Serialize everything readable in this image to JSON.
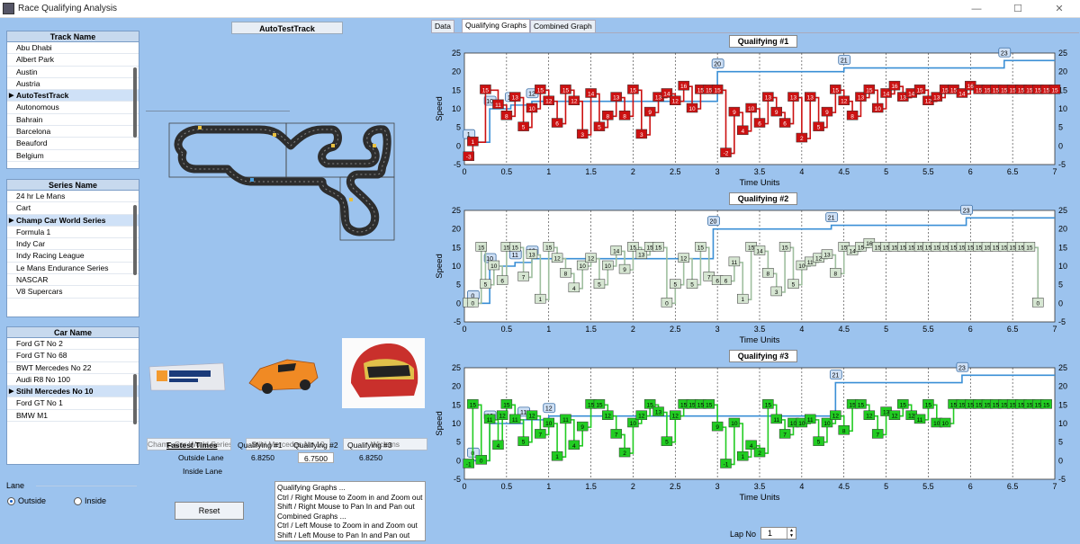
{
  "window": {
    "title": "Race Qualifying Analysis",
    "btn_min": "—",
    "btn_max": "☐",
    "btn_close": "✕"
  },
  "tracks": {
    "header": "Track Name",
    "items": [
      "Abu Dhabi",
      "Albert Park",
      "Austin",
      "Austria",
      "AutoTestTrack",
      "Autonomous",
      "Bahrain",
      "Barcelona",
      "Beauford",
      "Belgium"
    ],
    "selected": 4
  },
  "series": {
    "header": "Series Name",
    "items": [
      "24 hr Le Mans",
      "Cart",
      "Champ Car World Series",
      "Formula 1",
      "Indy Car",
      "Indy Racing League",
      "Le Mans Endurance Series",
      "NASCAR",
      "V8 Supercars"
    ],
    "selected": 2
  },
  "cars": {
    "header": "Car Name",
    "items": [
      "Ford GT No 2",
      "Ford GT No 68",
      "BWT Mercedes No 22",
      "Audi R8 No 100",
      "Stihl Mercedes No 10",
      "Ford GT No 1",
      "BMW M1"
    ],
    "selected": 4
  },
  "lane": {
    "label": "Lane",
    "outside": "Outside",
    "inside": "Inside",
    "selected": "outside"
  },
  "track_button": "AutoTestTrack",
  "series_box": "Champ Car World Series",
  "car_box": "Stihl Mercedes No 10",
  "driver_box": "Wickens",
  "fastest": {
    "title": "Fastest Times",
    "q1": "Qualifying #1",
    "q2": "Qualifying #2",
    "q3": "Qualifying #3",
    "outside": "Outside Lane",
    "inside": "Inside Lane",
    "v1": "6.8250",
    "v2": "6.7500",
    "v3": "6.8250"
  },
  "reset": "Reset",
  "help": [
    "Qualifying Graphs ...",
    "Ctrl / Right Mouse to Zoom in and Zoom out",
    "Shift / Right Mouse to Pan In and Pan out",
    "Combined Graphs ...",
    "Ctrl / Left Mouse to Zoom in and Zoom out",
    "Shift / Left Mouse to Pan In and Pan out"
  ],
  "tabs": [
    "Data",
    "Qualifying Graphs",
    "Combined Graph"
  ],
  "active_tab": 1,
  "lap": {
    "label": "Lap No",
    "value": "1"
  },
  "chart_data": [
    {
      "type": "line",
      "title": "Qualifying #1",
      "xlabel": "Time Units",
      "ylabel": "Speed",
      "xlim": [
        0,
        7
      ],
      "ylim": [
        -5,
        25
      ],
      "color": "#cc1111",
      "x": [
        0.05,
        0.1,
        0.25,
        0.4,
        0.5,
        0.6,
        0.7,
        0.8,
        0.9,
        1.0,
        1.1,
        1.2,
        1.3,
        1.4,
        1.5,
        1.6,
        1.7,
        1.8,
        1.9,
        2.0,
        2.1,
        2.2,
        2.3,
        2.4,
        2.5,
        2.6,
        2.7,
        2.8,
        2.9,
        3.0,
        3.1,
        3.2,
        3.3,
        3.4,
        3.5,
        3.6,
        3.7,
        3.8,
        3.9,
        4.0,
        4.1,
        4.2,
        4.3,
        4.4,
        4.5,
        4.6,
        4.7,
        4.8,
        4.9,
        5.0,
        5.1,
        5.2,
        5.3,
        5.4,
        5.5,
        5.6,
        5.7,
        5.8,
        5.9,
        6.0,
        6.1,
        6.2,
        6.3,
        6.4,
        6.5,
        6.6,
        6.7,
        6.8,
        6.9,
        7.0
      ],
      "y": [
        -3,
        1,
        15,
        11,
        8,
        13,
        5,
        10,
        15,
        12,
        6,
        15,
        12,
        3,
        14,
        5,
        8,
        13,
        8,
        15,
        3,
        9,
        13,
        14,
        12,
        16,
        10,
        15,
        15,
        15,
        -2,
        9,
        4,
        10,
        6,
        13,
        9,
        6,
        13,
        2,
        13,
        5,
        9,
        15,
        12,
        8,
        13,
        15,
        10,
        14,
        16,
        13,
        14,
        15,
        12,
        13,
        15,
        15,
        14,
        16,
        15,
        15,
        15,
        15,
        15,
        15,
        15,
        15,
        15,
        15
      ],
      "steps": [
        {
          "x": 0.05,
          "y": 1
        },
        {
          "x": 0.3,
          "y": 10
        },
        {
          "x": 0.55,
          "y": 11
        },
        {
          "x": 0.8,
          "y": 12
        },
        {
          "x": 3.0,
          "y": 20
        },
        {
          "x": 4.5,
          "y": 21
        },
        {
          "x": 6.4,
          "y": 23
        }
      ]
    },
    {
      "type": "line",
      "title": "Qualifying #2",
      "xlabel": "Time Units",
      "ylabel": "Speed",
      "xlim": [
        0,
        7
      ],
      "ylim": [
        -5,
        25
      ],
      "color": "#9fbf9f",
      "x": [
        0.05,
        0.1,
        0.2,
        0.25,
        0.35,
        0.45,
        0.5,
        0.6,
        0.7,
        0.8,
        0.9,
        1.0,
        1.1,
        1.2,
        1.3,
        1.4,
        1.5,
        1.6,
        1.7,
        1.8,
        1.9,
        2.0,
        2.1,
        2.2,
        2.3,
        2.4,
        2.5,
        2.6,
        2.7,
        2.8,
        2.9,
        3.0,
        3.1,
        3.2,
        3.3,
        3.4,
        3.5,
        3.6,
        3.7,
        3.8,
        3.9,
        4.0,
        4.1,
        4.2,
        4.3,
        4.4,
        4.5,
        4.6,
        4.7,
        4.8,
        4.9,
        5.0,
        5.1,
        5.2,
        5.3,
        5.4,
        5.5,
        5.6,
        5.7,
        5.8,
        5.9,
        6.0,
        6.1,
        6.2,
        6.3,
        6.4,
        6.5,
        6.6,
        6.7,
        6.8
      ],
      "y": [
        0,
        0,
        15,
        5,
        10,
        6,
        15,
        15,
        7,
        13,
        1,
        15,
        12,
        8,
        4,
        10,
        12,
        5,
        10,
        14,
        9,
        15,
        13,
        15,
        15,
        0,
        5,
        12,
        5,
        15,
        7,
        6,
        6,
        11,
        1,
        15,
        14,
        8,
        3,
        15,
        5,
        10,
        11,
        12,
        13,
        8,
        15,
        14,
        15,
        16,
        15,
        15,
        15,
        15,
        15,
        15,
        15,
        15,
        15,
        15,
        15,
        15,
        15,
        15,
        15,
        15,
        15,
        15,
        15,
        0
      ],
      "steps": [
        {
          "x": 0.1,
          "y": 0
        },
        {
          "x": 0.3,
          "y": 10
        },
        {
          "x": 0.6,
          "y": 11
        },
        {
          "x": 0.8,
          "y": 12
        },
        {
          "x": 2.95,
          "y": 20
        },
        {
          "x": 4.35,
          "y": 21
        },
        {
          "x": 5.95,
          "y": 23
        }
      ]
    },
    {
      "type": "line",
      "title": "Qualifying #3",
      "xlabel": "Time Units",
      "ylabel": "Speed",
      "xlim": [
        0,
        7
      ],
      "ylim": [
        -5,
        25
      ],
      "color": "#22cc22",
      "x": [
        0.05,
        0.1,
        0.2,
        0.3,
        0.4,
        0.45,
        0.5,
        0.6,
        0.7,
        0.8,
        0.9,
        1.0,
        1.1,
        1.2,
        1.3,
        1.4,
        1.5,
        1.6,
        1.7,
        1.8,
        1.9,
        2.0,
        2.1,
        2.2,
        2.3,
        2.4,
        2.5,
        2.6,
        2.7,
        2.8,
        2.9,
        3.0,
        3.1,
        3.2,
        3.3,
        3.4,
        3.5,
        3.6,
        3.7,
        3.8,
        3.9,
        4.0,
        4.1,
        4.2,
        4.3,
        4.4,
        4.5,
        4.6,
        4.7,
        4.8,
        4.9,
        5.0,
        5.1,
        5.2,
        5.3,
        5.4,
        5.5,
        5.6,
        5.7,
        5.8,
        5.9,
        6.0,
        6.1,
        6.2,
        6.3,
        6.4,
        6.5,
        6.6,
        6.7,
        6.8,
        6.9
      ],
      "y": [
        -1,
        15,
        0,
        11,
        4,
        12,
        15,
        11,
        5,
        12,
        7,
        10,
        1,
        11,
        4,
        9,
        15,
        15,
        12,
        7,
        2,
        10,
        12,
        15,
        13,
        5,
        12,
        15,
        15,
        15,
        15,
        9,
        -1,
        10,
        1,
        4,
        2,
        15,
        11,
        7,
        10,
        10,
        11,
        5,
        10,
        12,
        8,
        15,
        15,
        12,
        7,
        13,
        12,
        15,
        12,
        11,
        15,
        10,
        10,
        15,
        15,
        15,
        15,
        15,
        15,
        15,
        15,
        15,
        15,
        15,
        15
      ],
      "steps": [
        {
          "x": 0.1,
          "y": 0
        },
        {
          "x": 0.3,
          "y": 10
        },
        {
          "x": 0.7,
          "y": 11
        },
        {
          "x": 1.0,
          "y": 12
        },
        {
          "x": 4.4,
          "y": 21
        },
        {
          "x": 5.9,
          "y": 23
        }
      ]
    }
  ]
}
